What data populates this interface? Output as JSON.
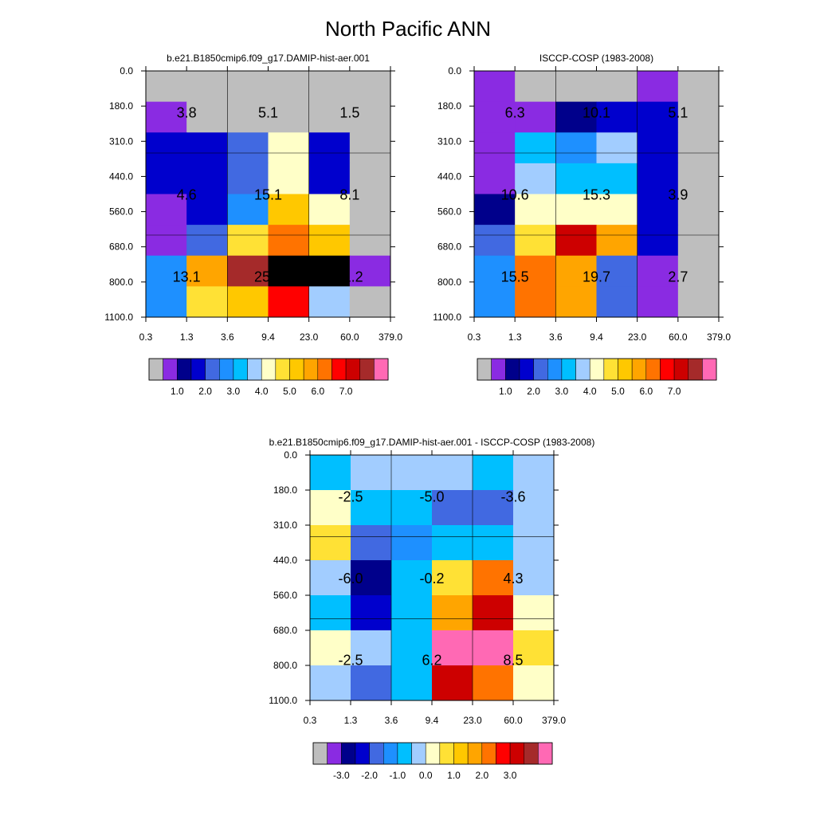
{
  "figure": {
    "title": "North Pacific ANN"
  },
  "chart_data": [
    {
      "type": "heatmap",
      "title": "b.e21.B1850cmip6.f09_g17.DAMIP-hist-aer.001",
      "x_ticks": [
        "0.3",
        "1.3",
        "3.6",
        "9.4",
        "23.0",
        "60.0",
        "379.0"
      ],
      "y_ticks": [
        "0.0",
        "180.0",
        "310.0",
        "440.0",
        "560.0",
        "680.0",
        "800.0",
        "1100.0"
      ],
      "cells": [
        [
          -1,
          -1,
          -1,
          -1,
          -1,
          -1
        ],
        [
          1,
          -1,
          -1,
          -1,
          -1,
          -1
        ],
        [
          3,
          3,
          4,
          8,
          3,
          -1
        ],
        [
          3,
          3,
          4,
          8,
          3,
          -1
        ],
        [
          1,
          3,
          5,
          10,
          8,
          -1
        ],
        [
          1,
          4,
          9,
          12,
          10,
          -1
        ],
        [
          5,
          11,
          15,
          17,
          17,
          1
        ],
        [
          5,
          9,
          10,
          13,
          7,
          -1
        ]
      ],
      "cells_note": "cells[row][col] = index into the colorbar (-1 = missing, grey); rows top to bottom by pressure, columns left to right by optical depth; each pressure band has two rows",
      "labels": [
        {
          "row": 0,
          "col": 0,
          "text": "3.8"
        },
        {
          "row": 0,
          "col": 1,
          "text": "5.1"
        },
        {
          "row": 0,
          "col": 2,
          "text": "1.5"
        },
        {
          "row": 1,
          "col": 0,
          "text": "4.6"
        },
        {
          "row": 1,
          "col": 1,
          "text": "15.1"
        },
        {
          "row": 1,
          "col": 2,
          "text": "8.1"
        },
        {
          "row": 2,
          "col": 0,
          "text": "13.1"
        },
        {
          "row": 2,
          "col": 1,
          "text": "25.9"
        },
        {
          "row": 2,
          "col": 2,
          "text": "11.2"
        }
      ],
      "colorbar": {
        "colors": [
          "#bebebe",
          "#8a2be2",
          "#00008b",
          "#0000cd",
          "#4169e1",
          "#1e90ff",
          "#00bfff",
          "#a2cdff",
          "#ffffc8",
          "#ffe135",
          "#ffc800",
          "#ffa500",
          "#ff7300",
          "#ff0000",
          "#cd0000",
          "#a52a2a",
          "#ff69b4"
        ],
        "tick_labels": [
          "1.0",
          "2.0",
          "3.0",
          "4.0",
          "5.0",
          "6.0",
          "7.0"
        ],
        "tick_after_box": [
          2,
          4,
          6,
          8,
          10,
          12,
          14
        ]
      }
    },
    {
      "type": "heatmap",
      "title": "ISCCP-COSP (1983-2008)",
      "x_ticks": [
        "0.3",
        "1.3",
        "3.6",
        "9.4",
        "23.0",
        "60.0",
        "379.0"
      ],
      "y_ticks": [
        "0.0",
        "180.0",
        "310.0",
        "440.0",
        "560.0",
        "680.0",
        "800.0",
        "1100.0"
      ],
      "cells": [
        [
          1,
          -1,
          -1,
          -1,
          1,
          -1
        ],
        [
          1,
          1,
          2,
          3,
          3,
          -1
        ],
        [
          1,
          6,
          5,
          7,
          3,
          -1
        ],
        [
          1,
          7,
          6,
          6,
          3,
          -1
        ],
        [
          2,
          8,
          8,
          8,
          3,
          -1
        ],
        [
          4,
          9,
          14,
          11,
          3,
          -1
        ],
        [
          5,
          12,
          11,
          4,
          1,
          -1
        ],
        [
          5,
          12,
          11,
          4,
          1,
          -1
        ]
      ],
      "cells_note": "cells[row][col] = index into the colorbar (-1 = missing, grey)",
      "labels": [
        {
          "row": 0,
          "col": 0,
          "text": "6.3"
        },
        {
          "row": 0,
          "col": 1,
          "text": "10.1"
        },
        {
          "row": 0,
          "col": 2,
          "text": "5.1"
        },
        {
          "row": 1,
          "col": 0,
          "text": "10.6"
        },
        {
          "row": 1,
          "col": 1,
          "text": "15.3"
        },
        {
          "row": 1,
          "col": 2,
          "text": "3.9"
        },
        {
          "row": 2,
          "col": 0,
          "text": "15.5"
        },
        {
          "row": 2,
          "col": 1,
          "text": "19.7"
        },
        {
          "row": 2,
          "col": 2,
          "text": "2.7"
        }
      ],
      "colorbar": {
        "colors": [
          "#bebebe",
          "#8a2be2",
          "#00008b",
          "#0000cd",
          "#4169e1",
          "#1e90ff",
          "#00bfff",
          "#a2cdff",
          "#ffffc8",
          "#ffe135",
          "#ffc800",
          "#ffa500",
          "#ff7300",
          "#ff0000",
          "#cd0000",
          "#a52a2a",
          "#ff69b4"
        ],
        "tick_labels": [
          "1.0",
          "2.0",
          "3.0",
          "4.0",
          "5.0",
          "6.0",
          "7.0"
        ],
        "tick_after_box": [
          2,
          4,
          6,
          8,
          10,
          12,
          14
        ]
      }
    },
    {
      "type": "heatmap",
      "title": "b.e21.B1850cmip6.f09_g17.DAMIP-hist-aer.001 - ISCCP-COSP (1983-2008)",
      "x_ticks": [
        "0.3",
        "1.3",
        "3.6",
        "9.4",
        "23.0",
        "60.0",
        "379.0"
      ],
      "y_ticks": [
        "0.0",
        "180.0",
        "310.0",
        "440.0",
        "560.0",
        "680.0",
        "800.0",
        "1100.0"
      ],
      "cells": [
        [
          6,
          7,
          7,
          7,
          6,
          7
        ],
        [
          8,
          6,
          6,
          4,
          4,
          7
        ],
        [
          9,
          4,
          5,
          6,
          6,
          7
        ],
        [
          7,
          2,
          6,
          9,
          12,
          7
        ],
        [
          6,
          3,
          6,
          11,
          14,
          8
        ],
        [
          8,
          7,
          6,
          16,
          16,
          9
        ],
        [
          7,
          4,
          6,
          14,
          12,
          8
        ]
      ],
      "cells_note": "cells[row][col] = index into the colorbar; rows top to bottom by pressure, columns left to right by optical depth",
      "labels": [
        {
          "row": 0,
          "col": 0,
          "text": "-2.5"
        },
        {
          "row": 0,
          "col": 1,
          "text": "-5.0"
        },
        {
          "row": 0,
          "col": 2,
          "text": "-3.6"
        },
        {
          "row": 1,
          "col": 0,
          "text": "-6.0"
        },
        {
          "row": 1,
          "col": 1,
          "text": "-0.2"
        },
        {
          "row": 1,
          "col": 2,
          "text": "4.3"
        },
        {
          "row": 2,
          "col": 0,
          "text": "-2.5"
        },
        {
          "row": 2,
          "col": 1,
          "text": "6.2"
        },
        {
          "row": 2,
          "col": 2,
          "text": "8.5"
        }
      ],
      "colorbar": {
        "colors": [
          "#bebebe",
          "#8a2be2",
          "#00008b",
          "#0000cd",
          "#4169e1",
          "#1e90ff",
          "#00bfff",
          "#a2cdff",
          "#ffffc8",
          "#ffe135",
          "#ffc800",
          "#ffa500",
          "#ff7300",
          "#ff0000",
          "#cd0000",
          "#a52a2a",
          "#ff69b4"
        ],
        "tick_labels": [
          "-3.0",
          "-2.0",
          "-1.0",
          "0.0",
          "1.0",
          "2.0",
          "3.0"
        ],
        "tick_after_box": [
          2,
          4,
          6,
          8,
          10,
          12,
          14
        ]
      }
    }
  ]
}
